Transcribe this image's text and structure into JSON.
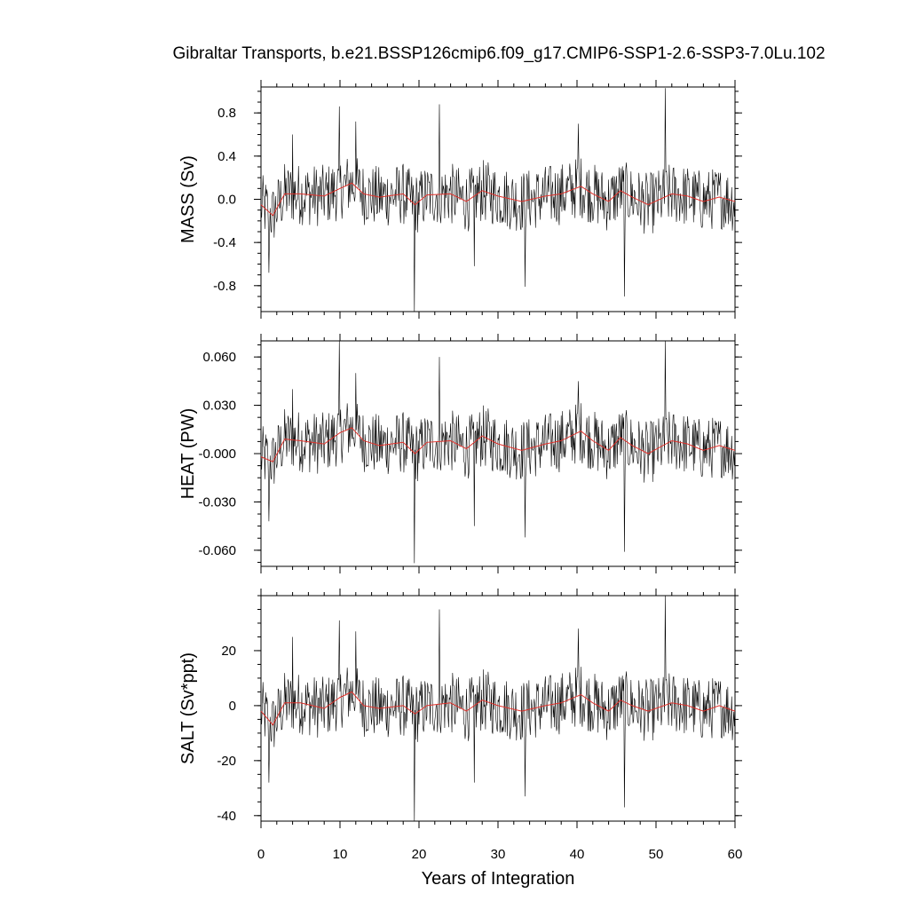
{
  "chart_data": {
    "type": "line",
    "title": "Gibraltar Transports, b.e21.BSSP126cmip6.f09_g17.CMIP6-SSP1-2.6-SSP3-7.0Lu.102",
    "xlabel": "Years of Integration",
    "xlim": [
      0,
      60
    ],
    "x_ticks": [
      0,
      10,
      20,
      30,
      40,
      50,
      60
    ],
    "x_tick_labels": [
      "0",
      "10",
      "20",
      "30",
      "40",
      "50",
      "60"
    ],
    "colors": {
      "raw": "#000000",
      "smoothed": "#e0302a"
    },
    "panels": [
      {
        "ylabel": "MASS (Sv)",
        "ylim": [
          -1.04,
          1.04
        ],
        "y_ticks": [
          0.8,
          0.4,
          0.0,
          -0.4,
          -0.8
        ],
        "y_tick_labels": [
          "0.8",
          "0.4",
          "0.0",
          "-0.4",
          "-0.8"
        ],
        "raw_points": [
          [
            0,
            -0.1
          ],
          [
            1.0,
            -0.68
          ],
          [
            4.0,
            0.6
          ],
          [
            9.9,
            0.86
          ],
          [
            12.0,
            0.72
          ],
          [
            19.4,
            -1.04
          ],
          [
            22.6,
            0.88
          ],
          [
            27.0,
            -0.62
          ],
          [
            33.4,
            -0.81
          ],
          [
            40.2,
            0.7
          ],
          [
            46.0,
            -0.9
          ],
          [
            51.2,
            1.03
          ],
          [
            60,
            0.1
          ]
        ],
        "smoothed_points": [
          [
            0,
            -0.05
          ],
          [
            1.5,
            -0.15
          ],
          [
            3,
            0.05
          ],
          [
            5,
            0.05
          ],
          [
            8,
            0.03
          ],
          [
            10,
            0.1
          ],
          [
            11.5,
            0.15
          ],
          [
            13,
            0.05
          ],
          [
            15,
            0.02
          ],
          [
            18,
            0.05
          ],
          [
            19.5,
            -0.05
          ],
          [
            21,
            0.04
          ],
          [
            24,
            0.05
          ],
          [
            26,
            -0.02
          ],
          [
            28,
            0.08
          ],
          [
            30,
            0.03
          ],
          [
            33,
            -0.02
          ],
          [
            36,
            0.03
          ],
          [
            38,
            0.05
          ],
          [
            40.5,
            0.12
          ],
          [
            42,
            0.05
          ],
          [
            44,
            -0.02
          ],
          [
            45.5,
            0.08
          ],
          [
            47,
            0.02
          ],
          [
            49,
            -0.05
          ],
          [
            52,
            0.05
          ],
          [
            54,
            0.03
          ],
          [
            56,
            -0.02
          ],
          [
            58,
            0.02
          ],
          [
            60,
            -0.02
          ]
        ]
      },
      {
        "ylabel": "HEAT (PW)",
        "ylim": [
          -0.07,
          0.07
        ],
        "y_ticks": [
          0.06,
          0.03,
          0.0,
          -0.03,
          -0.06
        ],
        "y_tick_labels": [
          "0.060",
          "0.030",
          "-0.000",
          "-0.030",
          "-0.060"
        ],
        "raw_points": [
          [
            0,
            0.0
          ],
          [
            1.0,
            -0.042
          ],
          [
            4.0,
            0.04
          ],
          [
            9.9,
            0.074
          ],
          [
            12.0,
            0.05
          ],
          [
            19.4,
            -0.068
          ],
          [
            22.6,
            0.06
          ],
          [
            27.0,
            -0.045
          ],
          [
            33.4,
            -0.052
          ],
          [
            40.2,
            0.045
          ],
          [
            46.0,
            -0.061
          ],
          [
            51.2,
            0.071
          ],
          [
            60,
            0.005
          ]
        ],
        "smoothed_points": [
          [
            0,
            -0.002
          ],
          [
            1.5,
            -0.005
          ],
          [
            3,
            0.009
          ],
          [
            5,
            0.008
          ],
          [
            8,
            0.006
          ],
          [
            10,
            0.013
          ],
          [
            11.5,
            0.016
          ],
          [
            13,
            0.008
          ],
          [
            15,
            0.005
          ],
          [
            18,
            0.007
          ],
          [
            19.5,
            0.0
          ],
          [
            21,
            0.007
          ],
          [
            24,
            0.008
          ],
          [
            26,
            0.003
          ],
          [
            28,
            0.011
          ],
          [
            30,
            0.006
          ],
          [
            33,
            0.002
          ],
          [
            36,
            0.006
          ],
          [
            38,
            0.008
          ],
          [
            40.5,
            0.014
          ],
          [
            42,
            0.008
          ],
          [
            44,
            0.002
          ],
          [
            45.5,
            0.01
          ],
          [
            47,
            0.005
          ],
          [
            49,
            0.0
          ],
          [
            52,
            0.008
          ],
          [
            54,
            0.006
          ],
          [
            56,
            0.002
          ],
          [
            58,
            0.005
          ],
          [
            60,
            0.002
          ]
        ]
      },
      {
        "ylabel": "SALT (Sv*ppt)",
        "ylim": [
          -42,
          40
        ],
        "y_ticks": [
          20,
          0,
          -20,
          -40
        ],
        "y_tick_labels": [
          "20",
          "0",
          "-20",
          "-40"
        ],
        "raw_points": [
          [
            0,
            -3
          ],
          [
            1.0,
            -28
          ],
          [
            4.0,
            25
          ],
          [
            9.9,
            31
          ],
          [
            12.0,
            27
          ],
          [
            19.4,
            -42
          ],
          [
            22.6,
            35
          ],
          [
            27.0,
            -28
          ],
          [
            33.4,
            -33
          ],
          [
            40.2,
            28
          ],
          [
            46.0,
            -37
          ],
          [
            51.2,
            40
          ],
          [
            60,
            2
          ]
        ],
        "smoothed_points": [
          [
            0,
            -2
          ],
          [
            1.5,
            -7
          ],
          [
            3,
            1
          ],
          [
            5,
            1
          ],
          [
            8,
            -1
          ],
          [
            10,
            3
          ],
          [
            11.5,
            5
          ],
          [
            13,
            0
          ],
          [
            15,
            -1
          ],
          [
            18,
            0
          ],
          [
            19.5,
            -3
          ],
          [
            21,
            0
          ],
          [
            24,
            1
          ],
          [
            26,
            -2
          ],
          [
            28,
            2
          ],
          [
            30,
            0
          ],
          [
            33,
            -2
          ],
          [
            36,
            0
          ],
          [
            38,
            1
          ],
          [
            40.5,
            4
          ],
          [
            42,
            1
          ],
          [
            44,
            -2
          ],
          [
            45.5,
            2
          ],
          [
            47,
            0
          ],
          [
            49,
            -2
          ],
          [
            52,
            1
          ],
          [
            54,
            0
          ],
          [
            56,
            -2
          ],
          [
            58,
            0
          ],
          [
            60,
            -2
          ]
        ]
      }
    ]
  }
}
